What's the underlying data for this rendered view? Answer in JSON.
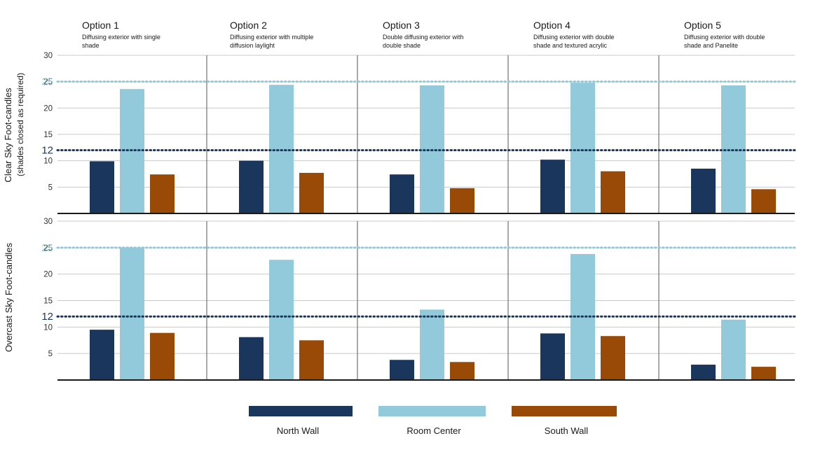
{
  "chart_data": {
    "type": "bar",
    "panels": [
      {
        "key": "option1",
        "title": "Option 1",
        "description": [
          "Diffusing exterior with single",
          "shade"
        ]
      },
      {
        "key": "option2",
        "title": "Option 2",
        "description": [
          "Diffusing exterior with multiple",
          "diffusion laylight"
        ]
      },
      {
        "key": "option3",
        "title": "Option 3",
        "description": [
          "Double diffusing exterior with",
          "double shade"
        ]
      },
      {
        "key": "option4",
        "title": "Option 4",
        "description": [
          "Diffusing exterior with double",
          "shade and textured acrylic"
        ]
      },
      {
        "key": "option5",
        "title": "Option 5",
        "description": [
          "Diffusing exterior with double",
          "shade and Panelite"
        ]
      }
    ],
    "series": [
      {
        "name": "North Wall",
        "color": "#1b365d"
      },
      {
        "name": "Room Center",
        "color": "#92cadb"
      },
      {
        "name": "South Wall",
        "color": "#984a06"
      }
    ],
    "rows": [
      {
        "key": "clear",
        "ylabel": "Clear Sky Foot-candles",
        "ylabel_sub": "(shades closed as required)",
        "ylim": [
          0,
          30
        ],
        "yticks": [
          5,
          10,
          15,
          20,
          25,
          30
        ],
        "values": [
          [
            9.9,
            23.6,
            7.4
          ],
          [
            10.0,
            24.4,
            7.7
          ],
          [
            7.4,
            24.3,
            4.8
          ],
          [
            10.2,
            24.8,
            8.0
          ],
          [
            8.5,
            24.3,
            4.6
          ]
        ]
      },
      {
        "key": "overcast",
        "ylabel": "Overcast Sky Foot-candles",
        "ylabel_sub": "",
        "ylim": [
          0,
          30
        ],
        "yticks": [
          5,
          10,
          15,
          20,
          25,
          30
        ],
        "values": [
          [
            9.5,
            25.0,
            8.9
          ],
          [
            8.1,
            22.7,
            7.5
          ],
          [
            3.8,
            13.3,
            3.4
          ],
          [
            8.8,
            23.8,
            8.3
          ],
          [
            2.9,
            11.4,
            2.5
          ]
        ]
      }
    ],
    "reference_lines": [
      {
        "value": 25,
        "label": "25",
        "color": "#92cadb",
        "style": "dotted"
      },
      {
        "value": 12,
        "label": "12",
        "color": "#1b365d",
        "style": "dotted"
      }
    ],
    "grid": true,
    "legend_position": "bottom"
  }
}
